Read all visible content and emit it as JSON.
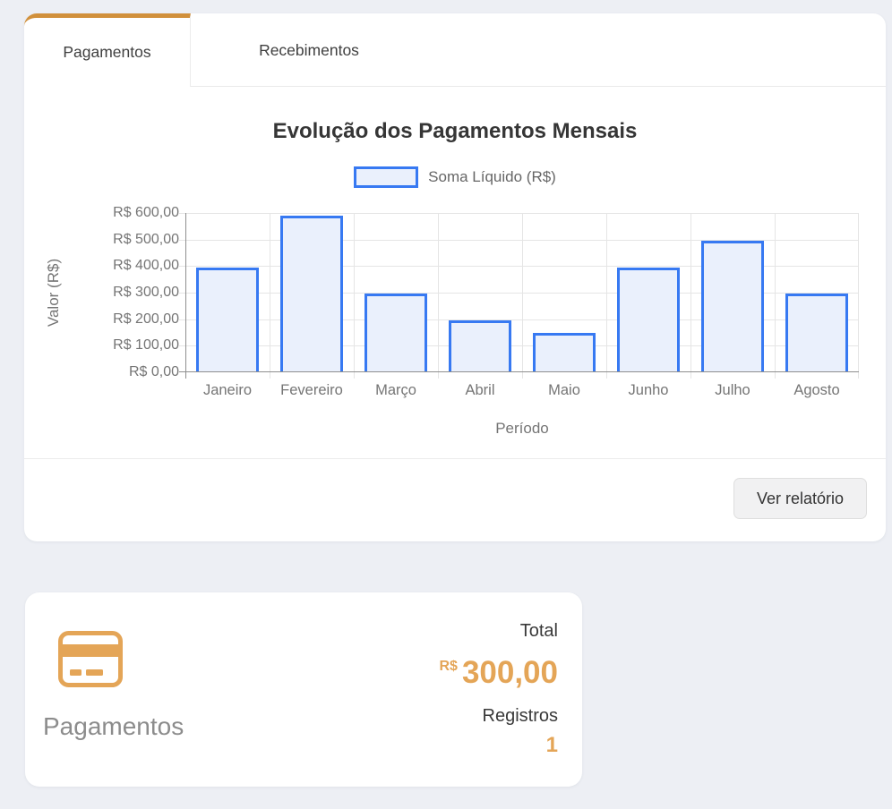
{
  "theme": {
    "page_bg": "#EDEFF4",
    "accent_orange": "#D1903B",
    "icon_orange": "#E4A557",
    "bar_border_blue": "#3779F2",
    "bar_fill_blue": "#EAF0FC"
  },
  "tabs": {
    "items": [
      {
        "label": "Pagamentos",
        "active": true
      },
      {
        "label": "Recebimentos",
        "active": false
      }
    ]
  },
  "chart_data": {
    "type": "bar",
    "title": "Evolução dos Pagamentos Mensais",
    "legend_label": "Soma Líquido (R$)",
    "legend_position": "top",
    "xlabel": "Período",
    "ylabel": "Valor (R$)",
    "categories": [
      "Janeiro",
      "Fevereiro",
      "Março",
      "Abril",
      "Maio",
      "Junho",
      "Julho",
      "Agosto"
    ],
    "values": [
      395,
      590,
      295,
      196,
      148,
      395,
      494,
      295
    ],
    "ylim": [
      0,
      600
    ],
    "ytick_step": 100,
    "ytick_labels": [
      "R$ 600,00",
      "R$ 500,00",
      "R$ 400,00",
      "R$ 300,00",
      "R$ 200,00",
      "R$ 100,00",
      "R$ 0,00"
    ],
    "grid": true
  },
  "footer": {
    "report_button": "Ver relatório"
  },
  "summary": {
    "title": "Pagamentos",
    "icon": "credit-card-icon",
    "total_label": "Total",
    "currency": "R$",
    "total_value": "300,00",
    "registros_label": "Registros",
    "registros_count": "1"
  }
}
